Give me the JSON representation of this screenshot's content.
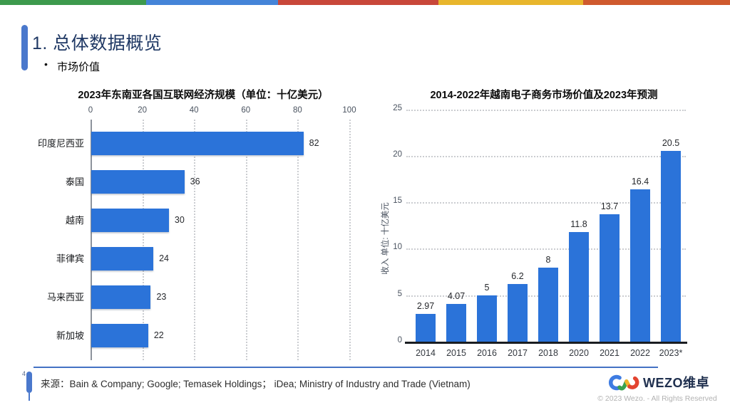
{
  "slide": {
    "page_number": "4",
    "title": "1. 总体数据概览",
    "bullet": "市场价值",
    "source": "来源：Bain & Company; Google; Temasek Holdings； iDea; Ministry of Industry and Trade (Vietnam)",
    "footer": {
      "brand": "WEZO维卓",
      "copyright": "© 2023 Wezo. - All Rights Reserved"
    },
    "accent_color": "#4472C4",
    "top_stripe_colors": [
      "#3d9a4d",
      "#4484d8",
      "#c8473a",
      "#e8b62c",
      "#cf5a2e"
    ]
  },
  "chart_data": [
    {
      "type": "bar",
      "orientation": "horizontal",
      "title": "2023年东南亚各国互联网经济规模（单位：十亿美元）",
      "categories": [
        "印度尼西亚",
        "泰国",
        "越南",
        "菲律宾",
        "马来西亚",
        "新加坡"
      ],
      "values": [
        82,
        36,
        30,
        24,
        23,
        22
      ],
      "value_labels": [
        "82",
        "36",
        "30",
        "24",
        "23",
        "22"
      ],
      "axis_ticks": [
        0,
        20,
        40,
        60,
        80,
        100
      ],
      "xlim": [
        0,
        100
      ],
      "xlabel": "",
      "ylabel": "",
      "bar_color": "#2b73d9",
      "grid": "dotted-vertical",
      "legend": "none"
    },
    {
      "type": "bar",
      "orientation": "vertical",
      "title": "2014-2022年越南电子商务市场价值及2023年预测",
      "categories": [
        "2014",
        "2015",
        "2016",
        "2017",
        "2018",
        "2020",
        "2021",
        "2022",
        "2023*"
      ],
      "values": [
        2.97,
        4.07,
        5,
        6.2,
        8,
        11.8,
        13.7,
        16.4,
        20.5
      ],
      "value_labels": [
        "2.97",
        "4.07",
        "5",
        "6.2",
        "8",
        "11.8",
        "13.7",
        "16.4",
        "20.5"
      ],
      "axis_ticks": [
        0,
        5,
        10,
        15,
        20,
        25
      ],
      "ylim": [
        0,
        25
      ],
      "xlabel": "",
      "ylabel": "收入 单位: 十亿美元",
      "bar_color": "#2b73d9",
      "grid": "dotted-horizontal",
      "legend": "none"
    }
  ]
}
